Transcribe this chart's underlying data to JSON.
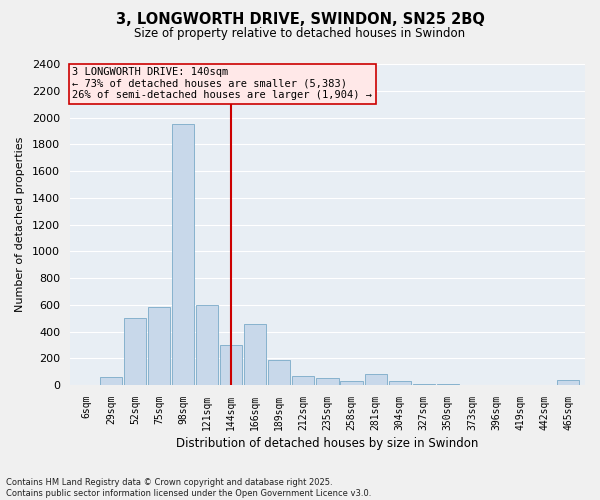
{
  "title": "3, LONGWORTH DRIVE, SWINDON, SN25 2BQ",
  "subtitle": "Size of property relative to detached houses in Swindon",
  "xlabel": "Distribution of detached houses by size in Swindon",
  "ylabel": "Number of detached properties",
  "bar_color": "#c8d8ea",
  "bar_edge_color": "#7aaac8",
  "background_color": "#e8eef4",
  "grid_color": "#ffffff",
  "vline_color": "#cc0000",
  "annotation_title": "3 LONGWORTH DRIVE: 140sqm",
  "annotation_line1": "← 73% of detached houses are smaller (5,383)",
  "annotation_line2": "26% of semi-detached houses are larger (1,904) →",
  "footnote1": "Contains HM Land Registry data © Crown copyright and database right 2025.",
  "footnote2": "Contains public sector information licensed under the Open Government Licence v3.0.",
  "categories": [
    "6sqm",
    "29sqm",
    "52sqm",
    "75sqm",
    "98sqm",
    "121sqm",
    "144sqm",
    "166sqm",
    "189sqm",
    "212sqm",
    "235sqm",
    "258sqm",
    "281sqm",
    "304sqm",
    "327sqm",
    "350sqm",
    "373sqm",
    "396sqm",
    "419sqm",
    "442sqm",
    "465sqm"
  ],
  "values": [
    0,
    60,
    500,
    580,
    1950,
    600,
    300,
    460,
    190,
    65,
    50,
    30,
    80,
    30,
    10,
    5,
    3,
    2,
    1,
    0,
    40
  ],
  "vline_cat": "144sqm",
  "ylim": [
    0,
    2400
  ],
  "yticks": [
    0,
    200,
    400,
    600,
    800,
    1000,
    1200,
    1400,
    1600,
    1800,
    2000,
    2200,
    2400
  ],
  "fig_width": 6.0,
  "fig_height": 5.0,
  "dpi": 100
}
